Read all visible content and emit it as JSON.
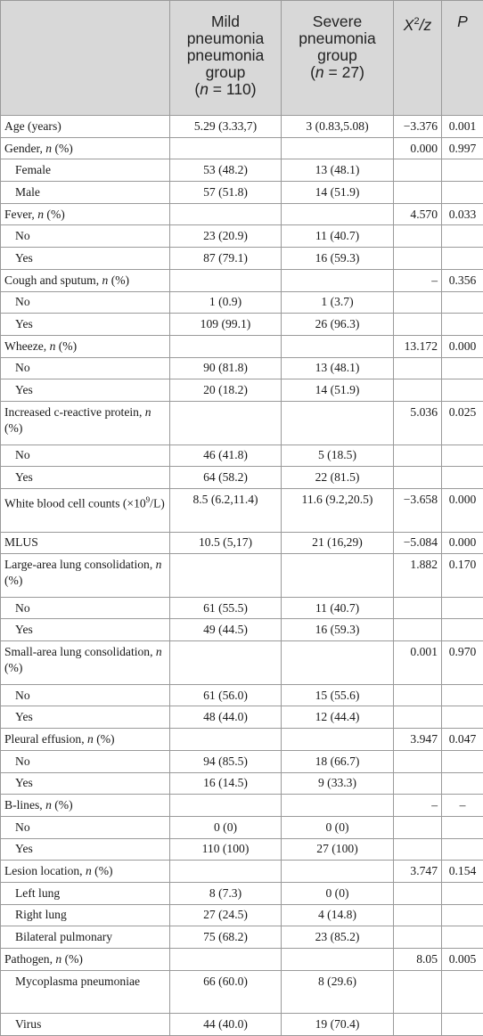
{
  "header": {
    "mild": {
      "line": "Mild pneumonia pneumonia group",
      "n_open": "(",
      "n": "n",
      "n_rest": " = 110)"
    },
    "severe": {
      "line": "Severe pneumonia group",
      "n_open": "(",
      "n": "n",
      "n_rest": " = 27)"
    },
    "stat": {
      "x": "X",
      "sup": "2",
      "rest": "/z"
    },
    "p": "P"
  },
  "rows": [
    {
      "label": "Age (years)",
      "mild": "5.29 (3.33,7)",
      "severe": "3 (0.83,5.08)",
      "stat": "−3.376",
      "p": "0.001"
    },
    {
      "label": "Gender, ",
      "n": "n",
      "pct": " (%)",
      "mild": "",
      "severe": "",
      "stat": "0.000",
      "p": "0.997"
    },
    {
      "label": "Female",
      "mild": "53 (48.2)",
      "severe": "13 (48.1)",
      "stat": "",
      "p": ""
    },
    {
      "label": "Male",
      "mild": "57 (51.8)",
      "severe": "14 (51.9)",
      "stat": "",
      "p": ""
    },
    {
      "label": "Fever, ",
      "n": "n",
      "pct": " (%)",
      "mild": "",
      "severe": "",
      "stat": "4.570",
      "p": "0.033"
    },
    {
      "label": "No",
      "mild": "23 (20.9)",
      "severe": "11 (40.7)",
      "stat": "",
      "p": ""
    },
    {
      "label": "Yes",
      "mild": "87 (79.1)",
      "severe": "16 (59.3)",
      "stat": "",
      "p": ""
    },
    {
      "label": "Cough and sputum, ",
      "n": "n",
      "pct": " (%)",
      "mild": "",
      "severe": "",
      "stat": "–",
      "p": "0.356"
    },
    {
      "label": "No",
      "mild": "1 (0.9)",
      "severe": "1 (3.7)",
      "stat": "",
      "p": ""
    },
    {
      "label": "Yes",
      "mild": "109 (99.1)",
      "severe": "26 (96.3)",
      "stat": "",
      "p": ""
    },
    {
      "label": "Wheeze, ",
      "n": "n",
      "pct": " (%)",
      "mild": "",
      "severe": "",
      "stat": "13.172",
      "p": "0.000"
    },
    {
      "label": "No",
      "mild": "90 (81.8)",
      "severe": "13 (48.1)",
      "stat": "",
      "p": ""
    },
    {
      "label": "Yes",
      "mild": "20 (18.2)",
      "severe": "14 (51.9)",
      "stat": "",
      "p": ""
    },
    {
      "label": "Increased c-reactive protein, ",
      "n": "n",
      "pct": " (%)",
      "mild": "",
      "severe": "",
      "stat": "5.036",
      "p": "0.025"
    },
    {
      "label": "No",
      "mild": "46 (41.8)",
      "severe": "5 (18.5)",
      "stat": "",
      "p": ""
    },
    {
      "label": "Yes",
      "mild": "64 (58.2)",
      "severe": "22 (81.5)",
      "stat": "",
      "p": ""
    },
    {
      "label": "White blood cell counts (×10",
      "sup": "9",
      "tail": "/L)",
      "mild": "8.5 (6.2,11.4)",
      "severe": "11.6 (9.2,20.5)",
      "stat": "−3.658",
      "p": "0.000"
    },
    {
      "label": "MLUS",
      "mild": "10.5 (5,17)",
      "severe": "21 (16,29)",
      "stat": "−5.084",
      "p": "0.000"
    },
    {
      "label": "Large-area lung consolidation, ",
      "n": "n",
      "pct": " (%)",
      "mild": "",
      "severe": "",
      "stat": "1.882",
      "p": "0.170"
    },
    {
      "label": "No",
      "mild": "61 (55.5)",
      "severe": "11 (40.7)",
      "stat": "",
      "p": ""
    },
    {
      "label": "Yes",
      "mild": "49 (44.5)",
      "severe": "16 (59.3)",
      "stat": "",
      "p": ""
    },
    {
      "label": "Small-area lung consolidation, ",
      "n": "n",
      "pct": " (%)",
      "mild": "",
      "severe": "",
      "stat": "0.001",
      "p": "0.970"
    },
    {
      "label": "No",
      "mild": "61 (56.0)",
      "severe": "15 (55.6)",
      "stat": "",
      "p": ""
    },
    {
      "label": "Yes",
      "mild": "48 (44.0)",
      "severe": "12 (44.4)",
      "stat": "",
      "p": ""
    },
    {
      "label": "Pleural effusion, ",
      "n": "n",
      "pct": " (%)",
      "mild": "",
      "severe": "",
      "stat": "3.947",
      "p": "0.047"
    },
    {
      "label": "No",
      "mild": "94 (85.5)",
      "severe": "18 (66.7)",
      "stat": "",
      "p": ""
    },
    {
      "label": "Yes",
      "mild": "16 (14.5)",
      "severe": "9 (33.3)",
      "stat": "",
      "p": ""
    },
    {
      "label": "B-lines, ",
      "n": "n",
      "pct": " (%)",
      "mild": "",
      "severe": "",
      "stat": "–",
      "p": "–"
    },
    {
      "label": "No",
      "mild": "0 (0)",
      "severe": "0 (0)",
      "stat": "",
      "p": ""
    },
    {
      "label": "Yes",
      "mild": "110 (100)",
      "severe": "27 (100)",
      "stat": "",
      "p": ""
    },
    {
      "label": "Lesion location, ",
      "n": "n",
      "pct": " (%)",
      "mild": "",
      "severe": "",
      "stat": "3.747",
      "p": "0.154"
    },
    {
      "label": "Left lung",
      "mild": "8 (7.3)",
      "severe": "0 (0)",
      "stat": "",
      "p": ""
    },
    {
      "label": "Right lung",
      "mild": "27 (24.5)",
      "severe": "4 (14.8)",
      "stat": "",
      "p": ""
    },
    {
      "label": "Bilateral pulmonary",
      "mild": "75 (68.2)",
      "severe": "23 (85.2)",
      "stat": "",
      "p": ""
    },
    {
      "label": "Pathogen, ",
      "n": "n",
      "pct": " (%)",
      "mild": "",
      "severe": "",
      "stat": "8.05",
      "p": "0.005"
    },
    {
      "label": "Mycoplasma pneumoniae",
      "mild": "66 (60.0)",
      "severe": "8 (29.6)",
      "stat": "",
      "p": ""
    },
    {
      "label": "Virus",
      "mild": "44 (40.0)",
      "severe": "19 (70.4)",
      "stat": "",
      "p": ""
    }
  ]
}
